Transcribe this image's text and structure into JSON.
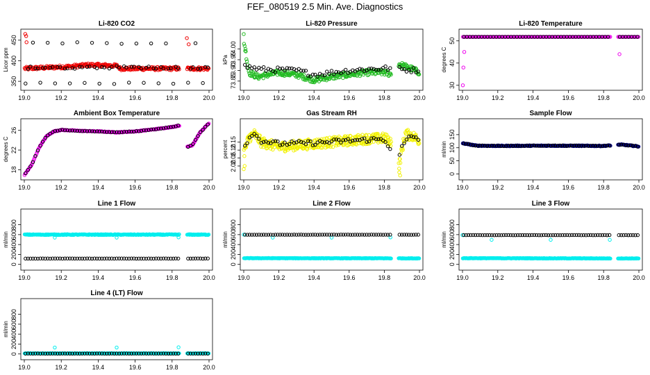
{
  "page": {
    "title": "FEF_080519  2.5 Min. Ave. Diagnostics"
  },
  "colors": {
    "black": "#000000",
    "red": "#ee0000",
    "green": "#22bb22",
    "magenta": "#ee00ee",
    "yellow": "#f2f200",
    "blue": "#00008b",
    "cyan": "#00eeee"
  },
  "chart_data": [
    {
      "id": "co2",
      "type": "scatter",
      "title": "Li-820 CO2",
      "xlabel": "",
      "ylabel": "Licor ppm",
      "xlim": [
        19.0,
        20.0
      ],
      "ylim": [
        335,
        470
      ],
      "xticks": [
        "19.0",
        "19.2",
        "19.4",
        "19.6",
        "19.8",
        "20.0"
      ],
      "yticks": [
        "350",
        "400",
        "450"
      ],
      "primary": {
        "color": "red",
        "gap": [
          19.84,
          19.88
        ],
        "base": [
          [
            19.0,
            381
          ],
          [
            19.25,
            386
          ],
          [
            19.35,
            390
          ],
          [
            19.5,
            388
          ],
          [
            19.52,
            381
          ],
          [
            20.0,
            381
          ]
        ],
        "noise": 2.5,
        "n": 300,
        "spikes": [
          [
            19.005,
            465
          ],
          [
            19.01,
            460
          ],
          [
            19.012,
            445
          ],
          [
            19.88,
            455
          ],
          [
            19.89,
            440
          ]
        ]
      },
      "secondary": {
        "color": "black",
        "n": 75,
        "base": [
          [
            19.0,
            383
          ],
          [
            19.5,
            384
          ],
          [
            20.0,
            383
          ]
        ],
        "noise": 3,
        "outliers": [
          345,
          443
        ]
      }
    },
    {
      "id": "pressure",
      "type": "scatter",
      "title": "Li-820 Pressure",
      "xlabel": "",
      "ylabel": "kPa",
      "xlim": [
        19.0,
        20.0
      ],
      "ylim": [
        73.82,
        74.08
      ],
      "xticks": [
        "19.0",
        "19.2",
        "19.4",
        "19.6",
        "19.8",
        "20.0"
      ],
      "yticks": [
        "73.85",
        "73.90",
        "73.95",
        "74.00"
      ],
      "primary": {
        "color": "green",
        "gap": [
          19.84,
          19.88
        ],
        "base": [
          [
            19.0,
            74.04
          ],
          [
            19.03,
            73.89
          ],
          [
            19.08,
            73.87
          ],
          [
            19.2,
            73.89
          ],
          [
            19.3,
            73.88
          ],
          [
            19.4,
            73.855
          ],
          [
            19.5,
            73.87
          ],
          [
            19.6,
            73.88
          ],
          [
            19.7,
            73.89
          ],
          [
            19.8,
            73.89
          ],
          [
            19.85,
            73.88
          ],
          [
            19.88,
            73.93
          ],
          [
            19.95,
            73.91
          ],
          [
            20.0,
            73.89
          ]
        ],
        "noise": 0.008,
        "n": 300,
        "spikes": [
          [
            19.0,
            74.07
          ],
          [
            19.01,
            74.0
          ]
        ]
      },
      "secondary": {
        "color": "black",
        "n": 75,
        "base": [
          [
            19.0,
            73.92
          ],
          [
            19.1,
            73.905
          ],
          [
            19.3,
            73.9
          ],
          [
            19.4,
            73.88
          ],
          [
            19.6,
            73.9
          ],
          [
            19.8,
            73.91
          ],
          [
            20.0,
            73.9
          ]
        ],
        "noise": 0.012
      }
    },
    {
      "id": "temperature",
      "type": "scatter",
      "title": "Li-820 Temperature",
      "xlabel": "",
      "ylabel": "degrees C",
      "xlim": [
        19.0,
        20.0
      ],
      "ylim": [
        29,
        54
      ],
      "xticks": [
        "19.0",
        "19.2",
        "19.4",
        "19.6",
        "19.8",
        "20.0"
      ],
      "yticks": [
        "30",
        "40",
        "50"
      ],
      "primary": {
        "color": "magenta",
        "gap": [
          19.84,
          19.88
        ],
        "base": [
          [
            19.0,
            51.8
          ],
          [
            20.0,
            51.8
          ]
        ],
        "noise": 0,
        "n": 200,
        "spikes": [
          [
            19.002,
            30
          ],
          [
            19.005,
            38
          ],
          [
            19.01,
            45
          ],
          [
            19.89,
            44
          ]
        ]
      },
      "secondary": {
        "color": "black",
        "n": 60,
        "base": [
          [
            19.0,
            51.8
          ],
          [
            20.0,
            51.8
          ]
        ],
        "noise": 0
      }
    },
    {
      "id": "ambient",
      "type": "scatter",
      "title": "Ambient Box Temperature",
      "xlabel": "",
      "ylabel": "degrees C",
      "xlim": [
        19.0,
        20.0
      ],
      "ylim": [
        16.5,
        27.8
      ],
      "xticks": [
        "19.0",
        "19.2",
        "19.4",
        "19.6",
        "19.8",
        "20.0"
      ],
      "yticks": [
        "18",
        "22",
        "26"
      ],
      "primary": {
        "color": "magenta",
        "gap": [
          19.84,
          19.88
        ],
        "base": [
          [
            19.0,
            16.9
          ],
          [
            19.04,
            19
          ],
          [
            19.08,
            22.5
          ],
          [
            19.12,
            24.8
          ],
          [
            19.16,
            25.8
          ],
          [
            19.2,
            26.1
          ],
          [
            19.3,
            25.9
          ],
          [
            19.4,
            25.8
          ],
          [
            19.5,
            25.6
          ],
          [
            19.6,
            25.8
          ],
          [
            19.7,
            26.2
          ],
          [
            19.8,
            26.7
          ],
          [
            19.84,
            27.0
          ],
          [
            19.88,
            22.6
          ],
          [
            19.91,
            23
          ],
          [
            19.95,
            25.5
          ],
          [
            20.0,
            27.5
          ]
        ],
        "noise": 0.05,
        "n": 320
      },
      "secondary": {
        "color": "black",
        "n": 75,
        "base": [
          [
            19.0,
            16.9
          ],
          [
            19.04,
            19
          ],
          [
            19.08,
            22.5
          ],
          [
            19.12,
            24.8
          ],
          [
            19.16,
            25.8
          ],
          [
            19.2,
            26.1
          ],
          [
            19.3,
            25.9
          ],
          [
            19.4,
            25.8
          ],
          [
            19.5,
            25.6
          ],
          [
            19.6,
            25.8
          ],
          [
            19.7,
            26.2
          ],
          [
            19.8,
            26.7
          ],
          [
            19.84,
            27.0
          ],
          [
            19.88,
            22.6
          ],
          [
            19.91,
            23
          ],
          [
            19.95,
            25.5
          ],
          [
            20.0,
            27.5
          ]
        ],
        "noise": 0.05
      }
    },
    {
      "id": "rh",
      "type": "scatter",
      "title": "Gas Stream RH",
      "xlabel": "",
      "ylabel": "percent",
      "xlim": [
        19.0,
        20.0
      ],
      "ylim": [
        1.93,
        2.28
      ],
      "xticks": [
        "19.0",
        "19.2",
        "19.4",
        "19.6",
        "19.8",
        "20.0"
      ],
      "yticks": [
        "2.00",
        "2.05",
        "2.10",
        "2.15"
      ],
      "primary": {
        "color": "yellow",
        "gap": [
          19.84,
          19.88
        ],
        "base": [
          [
            19.0,
            2.08
          ],
          [
            19.03,
            2.18
          ],
          [
            19.06,
            2.2
          ],
          [
            19.1,
            2.15
          ],
          [
            19.2,
            2.12
          ],
          [
            19.3,
            2.13
          ],
          [
            19.4,
            2.14
          ],
          [
            19.5,
            2.15
          ],
          [
            19.6,
            2.16
          ],
          [
            19.7,
            2.17
          ],
          [
            19.8,
            2.175
          ],
          [
            19.85,
            2.15
          ],
          [
            19.88,
            1.98
          ],
          [
            19.9,
            2.1
          ],
          [
            19.92,
            2.2
          ],
          [
            19.96,
            2.19
          ],
          [
            20.0,
            2.16
          ]
        ],
        "noise": 0.02,
        "n": 420,
        "spikes": [
          [
            19.0,
            1.98
          ],
          [
            19.005,
            2.0
          ],
          [
            19.885,
            1.96
          ],
          [
            19.89,
            1.94
          ]
        ]
      },
      "secondary": {
        "color": "black",
        "n": 75,
        "base": [
          [
            19.0,
            2.12
          ],
          [
            19.05,
            2.21
          ],
          [
            19.1,
            2.16
          ],
          [
            19.2,
            2.14
          ],
          [
            19.4,
            2.145
          ],
          [
            19.6,
            2.16
          ],
          [
            19.8,
            2.17
          ],
          [
            19.88,
            2.03
          ],
          [
            19.9,
            2.12
          ],
          [
            19.95,
            2.19
          ],
          [
            20.0,
            2.17
          ]
        ],
        "noise": 0.015
      }
    },
    {
      "id": "sample",
      "type": "scatter",
      "title": "Sample Flow",
      "xlabel": "",
      "ylabel": "ml/min",
      "xlim": [
        19.0,
        20.0
      ],
      "ylim": [
        -12,
        200
      ],
      "xticks": [
        "19.0",
        "19.2",
        "19.4",
        "19.6",
        "19.8",
        "20.0"
      ],
      "yticks": [
        "0",
        "50",
        "100",
        "150"
      ],
      "primary": {
        "color": "blue",
        "gap": [
          19.84,
          19.88
        ],
        "base": [
          [
            19.0,
            117
          ],
          [
            19.08,
            108
          ],
          [
            19.2,
            107
          ],
          [
            19.5,
            108
          ],
          [
            19.8,
            107
          ],
          [
            19.9,
            112
          ],
          [
            20.0,
            105
          ]
        ],
        "noise": 1,
        "n": 300
      },
      "secondary": {
        "color": "black",
        "n": 75,
        "base": [
          [
            19.0,
            117
          ],
          [
            19.08,
            108
          ],
          [
            19.2,
            107
          ],
          [
            19.5,
            108
          ],
          [
            19.8,
            107
          ],
          [
            19.9,
            112
          ],
          [
            20.0,
            105
          ]
        ],
        "noise": 1
      }
    },
    {
      "id": "line1",
      "type": "scatter",
      "title": "Line 1 Flow",
      "xlabel": "",
      "ylabel": "ml/min",
      "xlim": [
        19.0,
        20.0
      ],
      "ylim": [
        -60,
        1060
      ],
      "xticks": [
        "19.0",
        "19.2",
        "19.4",
        "19.6",
        "19.8",
        "20.0"
      ],
      "yticks": [
        "0",
        "200",
        "400",
        "600",
        "800"
      ],
      "primary": {
        "color": "cyan",
        "gap": [
          19.84,
          19.88
        ],
        "base": [
          [
            19.0,
            600
          ],
          [
            20.0,
            600
          ]
        ],
        "noise": 5,
        "n": 300,
        "spikes": [
          [
            19.165,
            540
          ],
          [
            19.5,
            540
          ],
          [
            19.835,
            545
          ]
        ]
      },
      "secondary": {
        "color": "black",
        "n": 75,
        "base": [
          [
            19.0,
            118
          ],
          [
            20.0,
            118
          ]
        ],
        "noise": 2
      }
    },
    {
      "id": "line2",
      "type": "scatter",
      "title": "Line 2 Flow",
      "xlabel": "",
      "ylabel": "ml/min",
      "xlim": [
        19.0,
        20.0
      ],
      "ylim": [
        -60,
        1060
      ],
      "xticks": [
        "19.0",
        "19.2",
        "19.4",
        "19.6",
        "19.8",
        "20.0"
      ],
      "yticks": [
        "0",
        "200",
        "400",
        "600",
        "800"
      ],
      "primary": {
        "color": "cyan",
        "gap": [
          19.84,
          19.88
        ],
        "base": [
          [
            19.0,
            125
          ],
          [
            20.0,
            122
          ]
        ],
        "noise": 3,
        "n": 300,
        "spikes": [
          [
            19.0,
            600
          ],
          [
            19.165,
            540
          ],
          [
            19.5,
            540
          ],
          [
            19.835,
            545
          ]
        ]
      },
      "secondary": {
        "color": "black",
        "n": 75,
        "base": [
          [
            19.0,
            598
          ],
          [
            20.0,
            598
          ]
        ],
        "noise": 2
      }
    },
    {
      "id": "line3",
      "type": "scatter",
      "title": "Line 3 Flow",
      "xlabel": "",
      "ylabel": "ml/min",
      "xlim": [
        19.0,
        20.0
      ],
      "ylim": [
        -60,
        1060
      ],
      "xticks": [
        "19.0",
        "19.2",
        "19.4",
        "19.6",
        "19.8",
        "20.0"
      ],
      "yticks": [
        "0",
        "200",
        "400",
        "600",
        "800"
      ],
      "primary": {
        "color": "cyan",
        "gap": [
          19.84,
          19.88
        ],
        "base": [
          [
            19.0,
            125
          ],
          [
            20.0,
            120
          ]
        ],
        "noise": 3,
        "n": 300,
        "spikes": [
          [
            19.0,
            590
          ],
          [
            19.165,
            495
          ],
          [
            19.5,
            495
          ],
          [
            19.835,
            495
          ]
        ]
      },
      "secondary": {
        "color": "black",
        "n": 75,
        "base": [
          [
            19.0,
            590
          ],
          [
            20.0,
            590
          ]
        ],
        "noise": 2
      }
    },
    {
      "id": "line4",
      "type": "scatter",
      "title": "Line 4 (LT) Flow",
      "xlabel": "",
      "ylabel": "ml/min",
      "xlim": [
        19.0,
        20.0
      ],
      "ylim": [
        -60,
        1060
      ],
      "xticks": [
        "19.0",
        "19.2",
        "19.4",
        "19.6",
        "19.8",
        "20.0"
      ],
      "yticks": [
        "0",
        "200",
        "400",
        "600",
        "800"
      ],
      "primary": {
        "color": "cyan",
        "gap": [
          19.84,
          19.88
        ],
        "base": [
          [
            19.0,
            12
          ],
          [
            20.0,
            12
          ]
        ],
        "noise": 2,
        "n": 300,
        "spikes": [
          [
            19.165,
            130
          ],
          [
            19.5,
            130
          ],
          [
            19.835,
            135
          ]
        ]
      },
      "secondary": {
        "color": "black",
        "n": 75,
        "base": [
          [
            19.0,
            8
          ],
          [
            20.0,
            8
          ]
        ],
        "noise": 1
      }
    }
  ]
}
